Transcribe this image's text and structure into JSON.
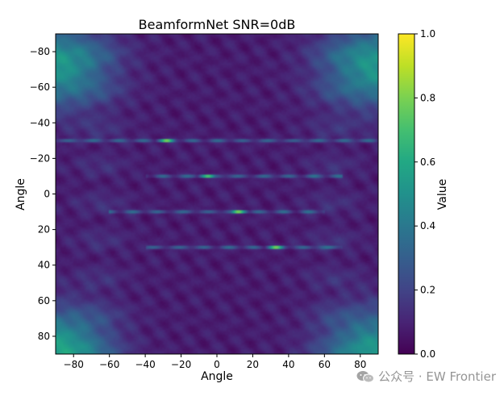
{
  "chart_data": {
    "type": "heatmap",
    "title": "BeamformNet SNR=0dB",
    "xlabel": "Angle",
    "ylabel": "Angle",
    "xlim": [
      -90,
      90
    ],
    "ylim": [
      -90,
      90
    ],
    "y_inverted": true,
    "x_ticks": [
      -80,
      -60,
      -40,
      -20,
      0,
      20,
      40,
      60,
      80
    ],
    "x_tick_labels": [
      "−80",
      "−60",
      "−40",
      "−20",
      "0",
      "20",
      "40",
      "60",
      "80"
    ],
    "y_ticks": [
      -80,
      -60,
      -40,
      -20,
      0,
      20,
      40,
      60,
      80
    ],
    "y_tick_labels": [
      "−80",
      "−60",
      "−40",
      "−20",
      "0",
      "20",
      "40",
      "60",
      "80"
    ],
    "colormap": "viridis",
    "colorbar": {
      "label": "Value",
      "range": [
        0.0,
        1.0
      ],
      "ticks": [
        0.0,
        0.2,
        0.4,
        0.6,
        0.8,
        1.0
      ],
      "tick_labels": [
        "0.0",
        "0.2",
        "0.4",
        "0.6",
        "0.8",
        "1.0"
      ]
    },
    "background_level": 0.08,
    "peaks": [
      {
        "x": -28,
        "y": -30,
        "value": 1.0
      },
      {
        "x": -5,
        "y": -10,
        "value": 0.9
      },
      {
        "x": 12,
        "y": 10,
        "value": 1.0
      },
      {
        "x": 33,
        "y": 30,
        "value": 1.0
      }
    ],
    "horizontal_streaks": [
      {
        "y": -30,
        "x_range": [
          -90,
          90
        ],
        "value": 0.3
      },
      {
        "y": -10,
        "x_range": [
          -40,
          70
        ],
        "value": 0.3
      },
      {
        "y": 10,
        "x_range": [
          -60,
          60
        ],
        "value": 0.3
      },
      {
        "y": 30,
        "x_range": [
          -40,
          70
        ],
        "value": 0.3
      }
    ],
    "corner_levels": {
      "top_left": 0.45,
      "top_right": 0.45,
      "bottom_left": 0.5,
      "bottom_right": 0.45
    }
  },
  "watermark": {
    "text": "公众号 · EW Frontier",
    "icon": "wechat-icon"
  },
  "colors": {
    "axis": "#000000"
  }
}
